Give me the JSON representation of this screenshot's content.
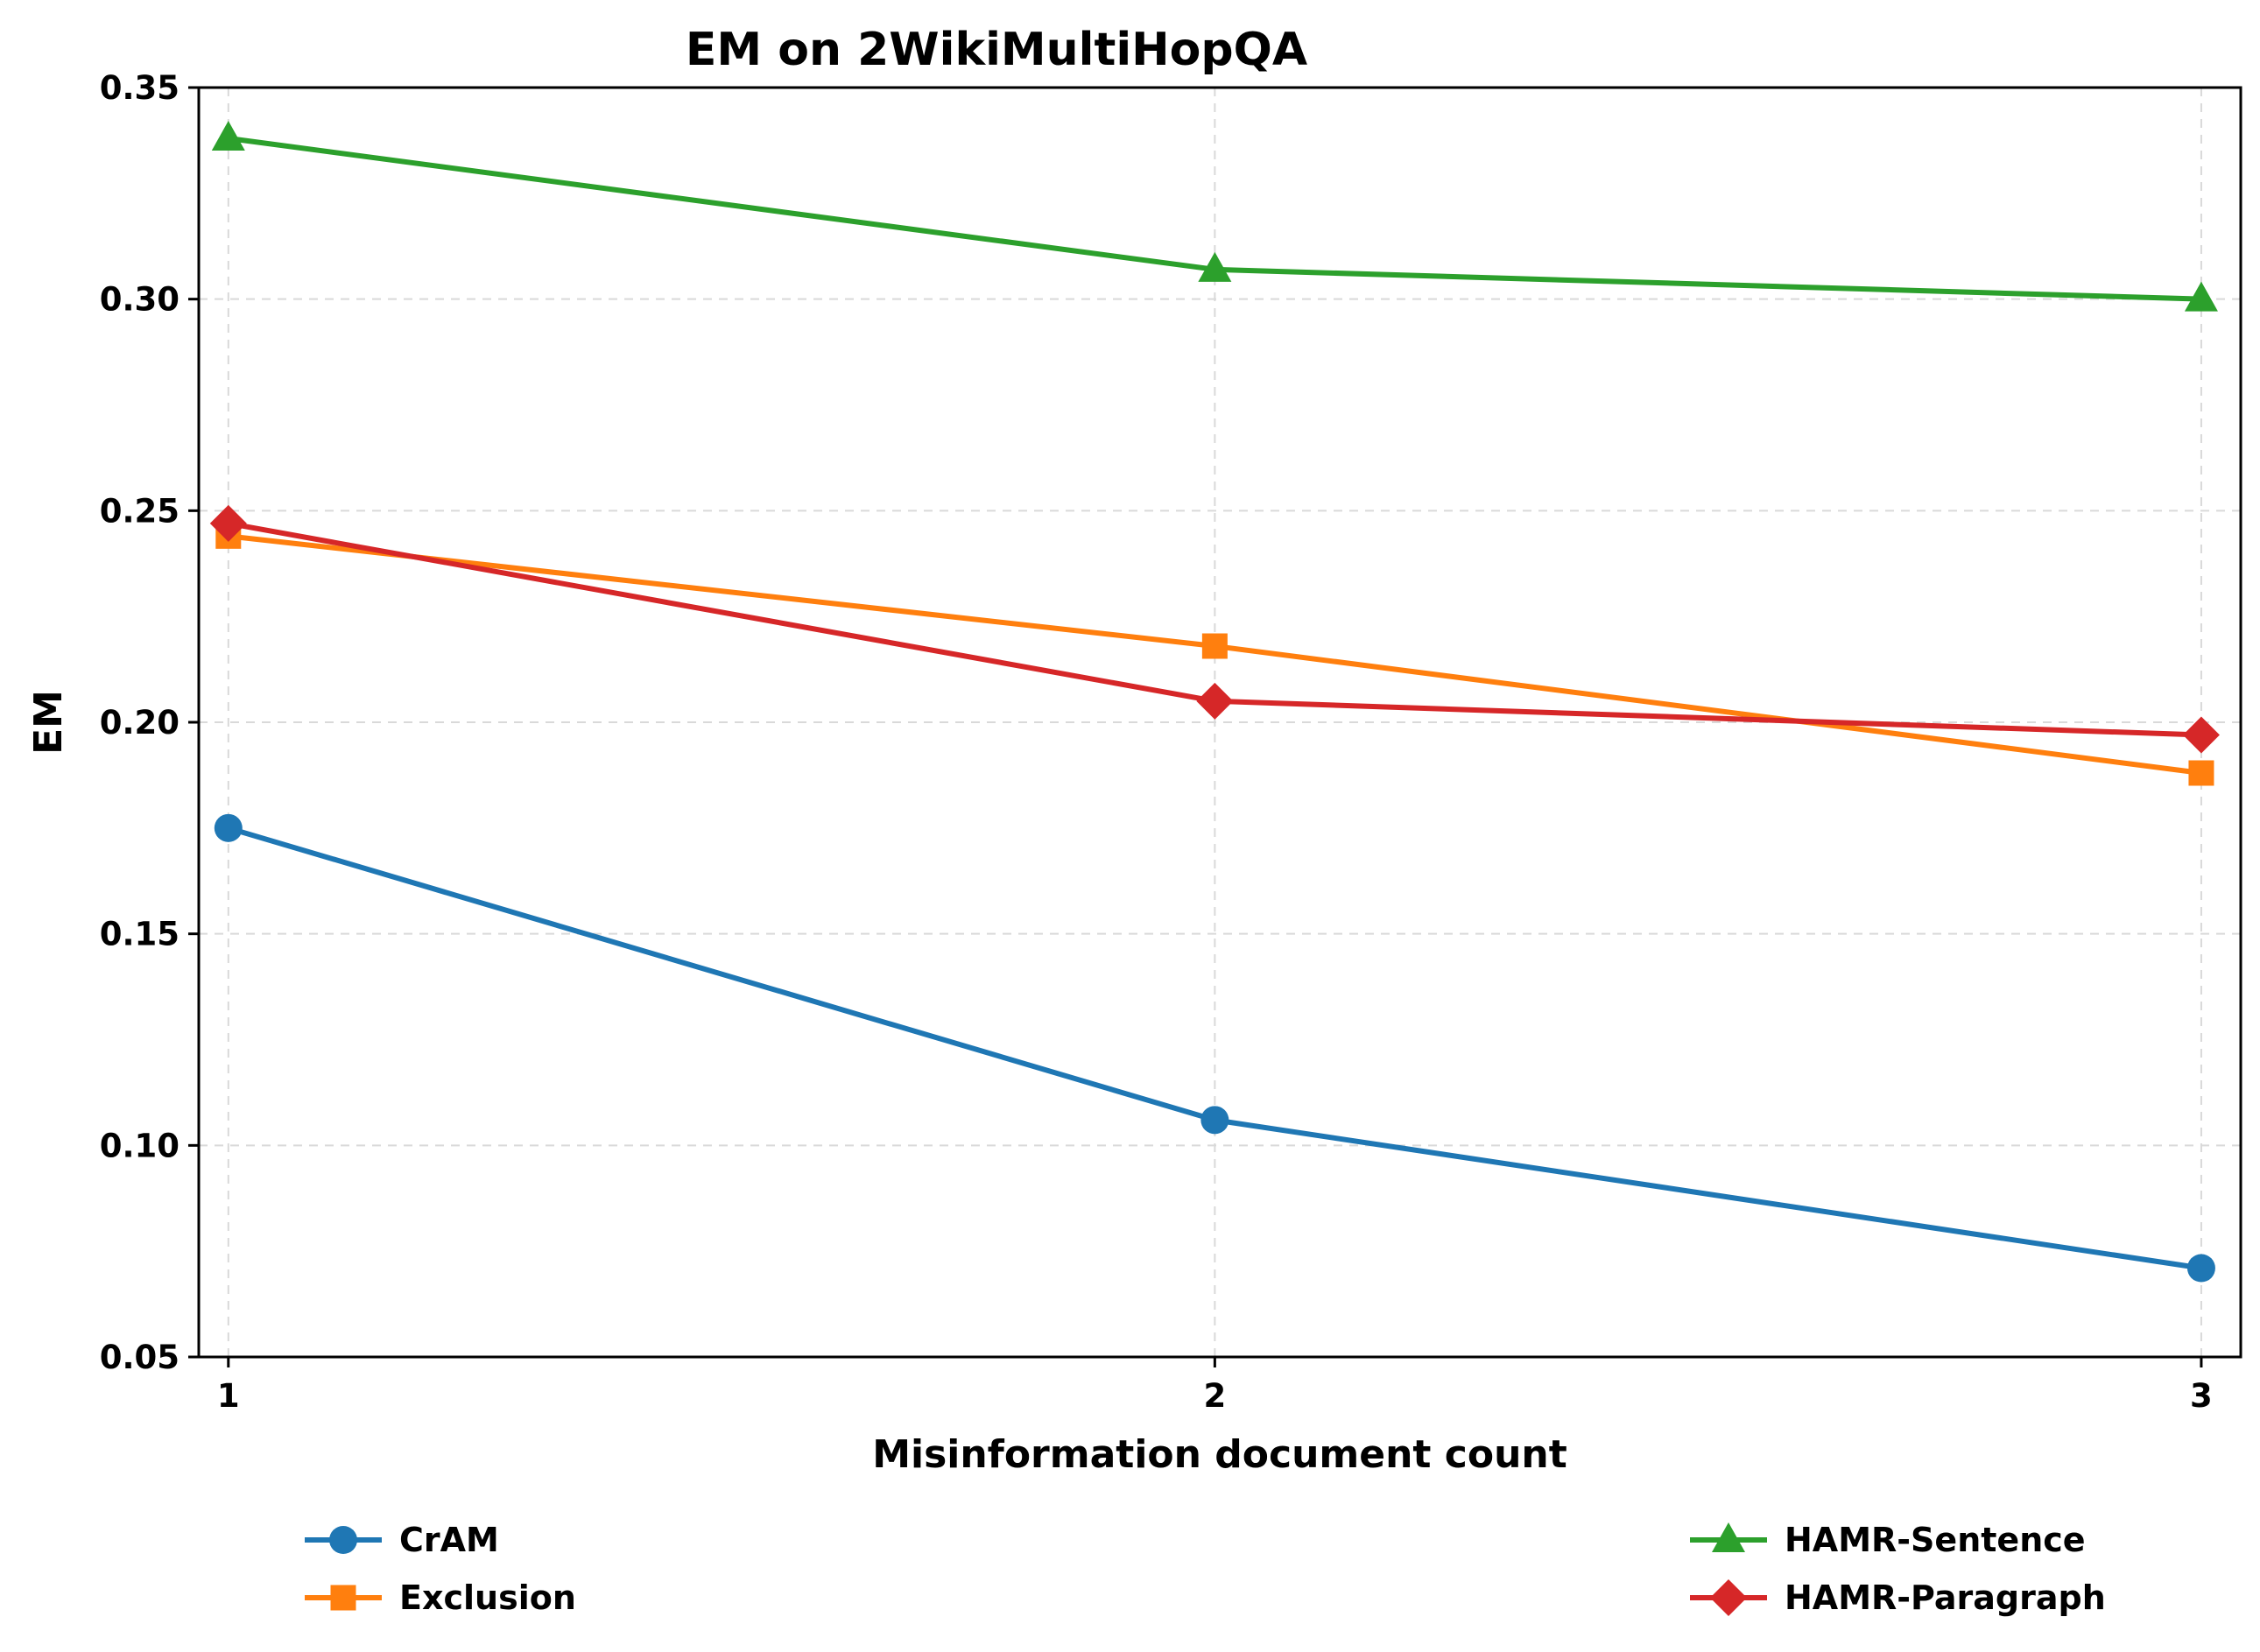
{
  "chart_data": {
    "type": "line",
    "title": "EM on 2WikiMultiHopQA",
    "xlabel": "Misinformation document count",
    "ylabel": "EM",
    "x": [
      1,
      2,
      3
    ],
    "x_tick_labels": [
      "1",
      "2",
      "3"
    ],
    "y_tick_labels": [
      "0.05",
      "0.10",
      "0.15",
      "0.20",
      "0.25",
      "0.30",
      "0.35"
    ],
    "xlim": [
      0.97,
      3.04
    ],
    "ylim": [
      0.05,
      0.35
    ],
    "grid": true,
    "legend_placement": "bottom, outside plot",
    "series": [
      {
        "name": "CrAM",
        "values": [
          0.175,
          0.106,
          0.071
        ],
        "color": "#1f77b4",
        "marker": "circle"
      },
      {
        "name": "Exclusion",
        "values": [
          0.244,
          0.218,
          0.188
        ],
        "color": "#ff7f0e",
        "marker": "square"
      },
      {
        "name": "HAMR-Sentence",
        "values": [
          0.338,
          0.307,
          0.3
        ],
        "color": "#2ca02c",
        "marker": "triangle"
      },
      {
        "name": "HAMR-Paragraph",
        "values": [
          0.247,
          0.205,
          0.197
        ],
        "color": "#d62728",
        "marker": "diamond"
      }
    ]
  }
}
